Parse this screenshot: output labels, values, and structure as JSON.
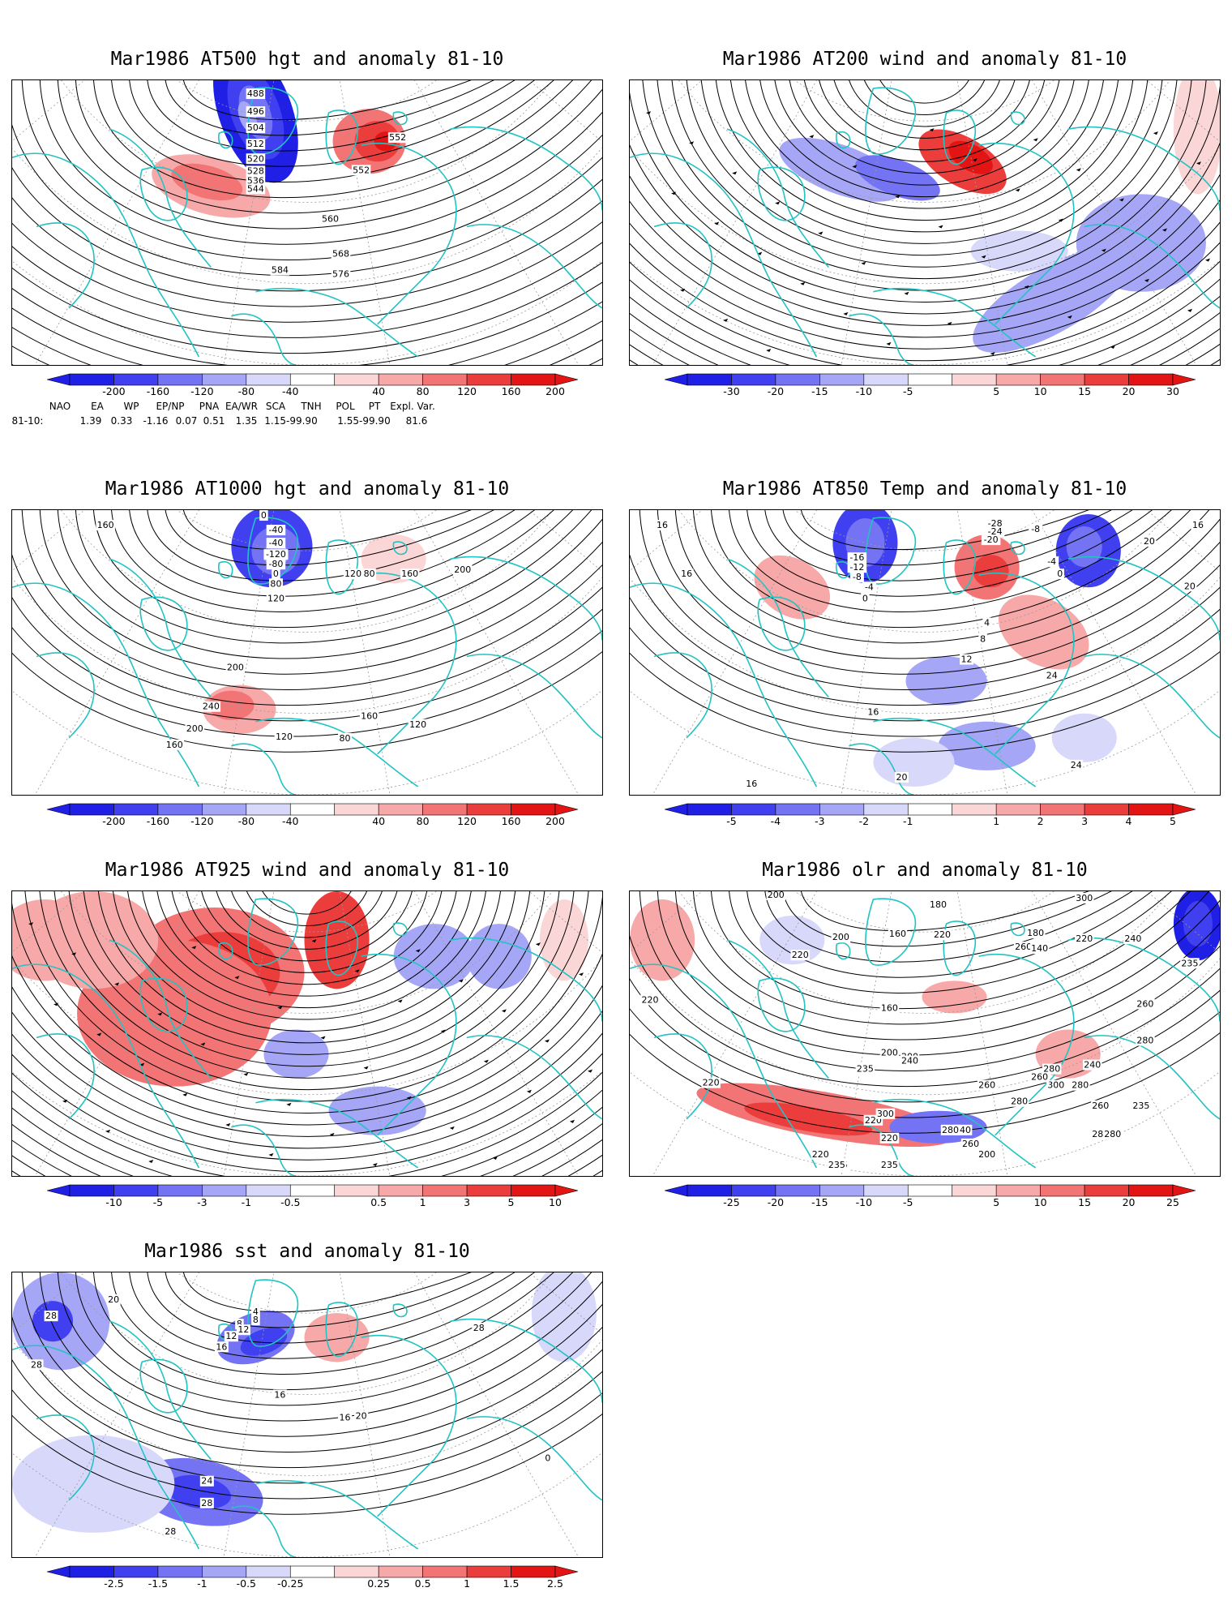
{
  "panels": [
    {
      "id": "p1",
      "title": "Mar1986 AT500 hgt and anomaly 81-10",
      "variable": "500 hPa geopotential height",
      "contour_labels": [
        "488",
        "496",
        "504",
        "512",
        "520",
        "528",
        "536",
        "544",
        "552",
        "560",
        "568",
        "576",
        "584",
        "552"
      ],
      "colorbar": {
        "labels": [
          "-200",
          "-160",
          "-120",
          "-80",
          "-40",
          "40",
          "80",
          "120",
          "160",
          "200"
        ]
      },
      "indices": {
        "names": [
          "NAO",
          "EA",
          "WP",
          "EP/NP",
          "PNA",
          "EA/WR",
          "SCA",
          "TNH",
          "POL",
          "PT",
          "Expl. Var."
        ],
        "row_label": "81-10:",
        "values": [
          "1.39",
          "0.33",
          "-1.16",
          "0.07",
          "0.51",
          "1.35",
          "1.15-99.90",
          "1.55-99.90",
          "81.6"
        ]
      }
    },
    {
      "id": "p2",
      "title": "Mar1986 AT200 wind and anomaly 81-10",
      "variable": "200 hPa wind streamlines",
      "contour_labels": [],
      "colorbar": {
        "labels": [
          "-30",
          "-20",
          "-15",
          "-10",
          "-5",
          "5",
          "10",
          "15",
          "20",
          "30"
        ]
      }
    },
    {
      "id": "p3",
      "title": "Mar1986 AT1000 hgt and anomaly 81-10",
      "variable": "1000 hPa geopotential height",
      "contour_labels": [
        "0",
        "-40",
        "-40",
        "-120",
        "-80",
        "0",
        "80",
        "120",
        "160",
        "200",
        "200",
        "240",
        "200",
        "160",
        "120",
        "80",
        "120",
        "80",
        "160",
        "120",
        "160"
      ],
      "colorbar": {
        "labels": [
          "-200",
          "-160",
          "-120",
          "-80",
          "-40",
          "40",
          "80",
          "120",
          "160",
          "200"
        ]
      }
    },
    {
      "id": "p4",
      "title": "Mar1986 AT850 Temp and anomaly 81-10",
      "variable": "850 hPa temperature",
      "contour_labels": [
        "16",
        "16",
        "-28",
        "-24",
        "-20",
        "-16",
        "-12",
        "-8",
        "-4",
        "0",
        "-8",
        "-4",
        "0",
        "20",
        "20",
        "4",
        "8",
        "12",
        "16",
        "24",
        "24",
        "20",
        "16",
        "16"
      ],
      "colorbar": {
        "labels": [
          "-5",
          "-4",
          "-3",
          "-2",
          "-1",
          "1",
          "2",
          "3",
          "4",
          "5"
        ]
      }
    },
    {
      "id": "p5",
      "title": "Mar1986 AT925 wind and anomaly 81-10",
      "variable": "925 hPa wind streamlines",
      "contour_labels": [],
      "colorbar": {
        "labels": [
          "-10",
          "-5",
          "-3",
          "-1",
          "-0.5",
          "0.5",
          "1",
          "3",
          "5",
          "10"
        ]
      }
    },
    {
      "id": "p6",
      "title": "Mar1986 olr and anomaly 81-10",
      "variable": "outgoing longwave radiation",
      "contour_labels": [
        "200",
        "180",
        "200",
        "160",
        "300",
        "220",
        "240",
        "260",
        "280",
        "220",
        "180",
        "140",
        "160",
        "200",
        "220",
        "200",
        "240",
        "235",
        "220",
        "240",
        "260",
        "280",
        "300",
        "280",
        "260",
        "240",
        "280",
        "260",
        "280",
        "300",
        "235",
        "260",
        "280",
        "220",
        "260",
        "280",
        "200",
        "235",
        "235",
        "220",
        "220",
        "235",
        "235",
        "220"
      ],
      "colorbar": {
        "labels": [
          "-25",
          "-20",
          "-15",
          "-10",
          "-5",
          "5",
          "10",
          "15",
          "20",
          "25"
        ]
      }
    },
    {
      "id": "p7",
      "title": "Mar1986 sst and anomaly 81-10",
      "variable": "sea surface temperature",
      "contour_labels": [
        "28",
        "28",
        "20",
        "4",
        "8",
        "12",
        "16",
        "16",
        "16",
        "20",
        "24",
        "28",
        "28",
        "28",
        "0",
        "4",
        "8",
        "12"
      ],
      "colorbar": {
        "labels": [
          "-2.5",
          "-1.5",
          "-1",
          "-0.5",
          "-0.25",
          "0.25",
          "0.5",
          "1",
          "1.5",
          "2.5"
        ]
      }
    }
  ],
  "colors": {
    "coast": "#22c3c3",
    "grid": "#9a9a9a",
    "contour": "#000000",
    "neg": [
      "#1f1fe6",
      "#4040f0",
      "#7373f4",
      "#a6a6f7",
      "#d8d8fb"
    ],
    "pos": [
      "#fbd6d6",
      "#f7a8a8",
      "#f27474",
      "#ec3d3d",
      "#e21414"
    ]
  }
}
